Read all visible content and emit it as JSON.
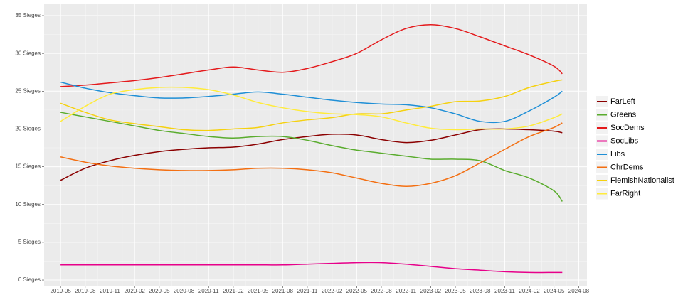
{
  "chart_data": {
    "type": "line",
    "x": [
      "2019-05",
      "2019-08",
      "2019-11",
      "2020-02",
      "2020-05",
      "2020-08",
      "2020-11",
      "2021-02",
      "2021-05",
      "2021-08",
      "2021-11",
      "2022-02",
      "2022-05",
      "2022-08",
      "2022-11",
      "2023-02",
      "2023-05",
      "2023-08",
      "2023-11",
      "2024-02",
      "2024-05",
      "2024-06"
    ],
    "series": [
      {
        "name": "FarLeft",
        "color": "#8b0000",
        "values": [
          13.2,
          14.8,
          15.8,
          16.5,
          17,
          17.3,
          17.5,
          17.6,
          18,
          18.6,
          19,
          19.3,
          19.2,
          18.6,
          18.2,
          18.5,
          19.2,
          19.9,
          20,
          19.9,
          19.7,
          19.5
        ]
      },
      {
        "name": "Greens",
        "color": "#5aac2e",
        "values": [
          22.2,
          21.6,
          21,
          20.4,
          19.8,
          19.4,
          19,
          18.8,
          19,
          19,
          18.5,
          17.8,
          17.2,
          16.8,
          16.4,
          16,
          16,
          15.8,
          14.5,
          13.5,
          11.8,
          10.4
        ]
      },
      {
        "name": "SocDems",
        "color": "#e41a1c",
        "values": [
          25.6,
          25.8,
          26.1,
          26.4,
          26.8,
          27.3,
          27.8,
          28.2,
          27.8,
          27.5,
          28,
          28.9,
          30,
          31.8,
          33.3,
          33.8,
          33.3,
          32.2,
          31,
          29.8,
          28.3,
          27.3
        ]
      },
      {
        "name": "SocLibs",
        "color": "#e7008a",
        "values": [
          2,
          2,
          2,
          2,
          2,
          2,
          2,
          2,
          2,
          2,
          2.1,
          2.2,
          2.3,
          2.3,
          2.1,
          1.8,
          1.5,
          1.3,
          1.1,
          1,
          1,
          1
        ]
      },
      {
        "name": "Libs",
        "color": "#1f8fd6",
        "values": [
          26.2,
          25.4,
          24.8,
          24.4,
          24.1,
          24.1,
          24.3,
          24.6,
          24.9,
          24.6,
          24.2,
          23.8,
          23.5,
          23.3,
          23.2,
          22.8,
          22,
          21,
          21,
          22.4,
          24.2,
          25
        ]
      },
      {
        "name": "ChrDems",
        "color": "#f36f12",
        "values": [
          16.3,
          15.6,
          15.1,
          14.8,
          14.6,
          14.5,
          14.5,
          14.6,
          14.8,
          14.8,
          14.6,
          14.2,
          13.5,
          12.8,
          12.4,
          12.8,
          13.8,
          15.5,
          17.3,
          19,
          20.2,
          20.8
        ]
      },
      {
        "name": "FlemishNationalist",
        "color": "#f5d10f",
        "values": [
          23.4,
          22.2,
          21.2,
          20.7,
          20.3,
          19.9,
          19.8,
          20,
          20.2,
          20.8,
          21.2,
          21.5,
          22,
          22,
          22.5,
          23,
          23.6,
          23.7,
          24.3,
          25.5,
          26.3,
          26.5
        ]
      },
      {
        "name": "FarRight",
        "color": "#ffeb3b",
        "values": [
          21,
          23,
          24.6,
          25.2,
          25.5,
          25.5,
          25.2,
          24.5,
          23.5,
          22.8,
          22.3,
          22,
          21.9,
          21.6,
          20.8,
          20.1,
          19.9,
          20,
          20,
          20.4,
          21.5,
          22
        ]
      }
    ],
    "xlim": [
      "2019-03",
      "2024-09"
    ],
    "xticks": [
      "2019-05",
      "2019-08",
      "2019-11",
      "2020-02",
      "2020-05",
      "2020-08",
      "2020-11",
      "2021-02",
      "2021-05",
      "2021-08",
      "2021-11",
      "2022-02",
      "2022-05",
      "2022-08",
      "2022-11",
      "2023-02",
      "2023-05",
      "2023-08",
      "2023-11",
      "2024-02",
      "2024-05",
      "2024-08"
    ],
    "ylim": [
      -0.75,
      36.6
    ],
    "yticks": [
      {
        "value": 0,
        "label": "0 Sieges"
      },
      {
        "value": 5,
        "label": "5 Sieges"
      },
      {
        "value": 10,
        "label": "10 Sieges"
      },
      {
        "value": 15,
        "label": "15 Sieges"
      },
      {
        "value": 20,
        "label": "20 Sieges"
      },
      {
        "value": 25,
        "label": "25 Sieges"
      },
      {
        "value": 30,
        "label": "30 Sieges"
      },
      {
        "value": 35,
        "label": "35 Sieges"
      }
    ],
    "grid": true,
    "legend": "right"
  }
}
